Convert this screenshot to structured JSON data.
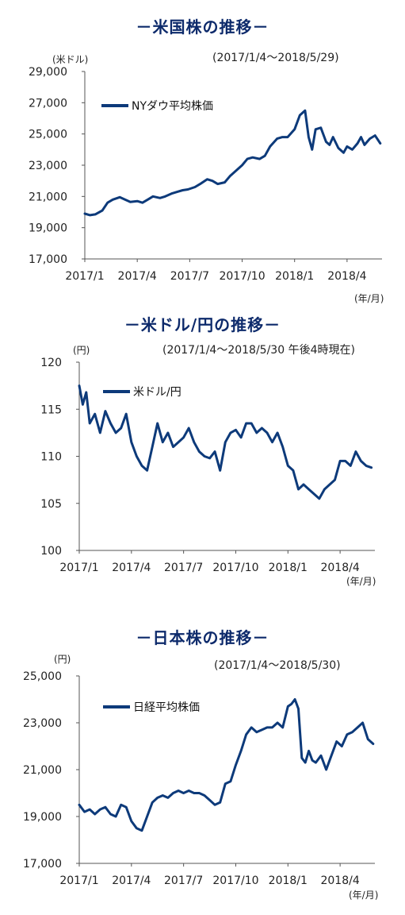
{
  "colors": {
    "line": "#0d3a7a",
    "title": "#0d2a6b",
    "axis": "#555555"
  },
  "chart_data": [
    {
      "type": "line",
      "title": "－米国株の推移－",
      "period": "(2017/1/4～2018/5/29)",
      "yunit": "(米ドル)",
      "xunit": "(年/月)",
      "ylim": [
        17000,
        29000
      ],
      "yticks": [
        "29,000",
        "27,000",
        "25,000",
        "23,000",
        "21,000",
        "19,000",
        "17,000"
      ],
      "ytick_values": [
        29000,
        27000,
        25000,
        23000,
        21000,
        19000,
        17000
      ],
      "xticks": [
        "2017/1",
        "2017/4",
        "2017/7",
        "2017/10",
        "2018/1",
        "2018/4"
      ],
      "xtick_positions": [
        0,
        3,
        6,
        9,
        12,
        15
      ],
      "xlim": [
        0,
        17
      ],
      "series": [
        {
          "name": "NYダウ平均株価",
          "x": [
            0,
            0.3,
            0.6,
            1.0,
            1.3,
            1.6,
            2.0,
            2.3,
            2.6,
            3.0,
            3.3,
            3.6,
            3.9,
            4.3,
            4.6,
            5.0,
            5.3,
            5.6,
            5.9,
            6.3,
            6.6,
            7.0,
            7.3,
            7.6,
            8.0,
            8.3,
            8.6,
            9.0,
            9.3,
            9.6,
            10.0,
            10.3,
            10.6,
            11.0,
            11.3,
            11.6,
            12.0,
            12.3,
            12.6,
            12.8,
            13.0,
            13.2,
            13.5,
            13.8,
            14.0,
            14.2,
            14.5,
            14.8,
            15.0,
            15.3,
            15.6,
            15.8,
            16.0,
            16.3,
            16.6,
            16.9
          ],
          "values": [
            19900,
            19800,
            19850,
            20100,
            20600,
            20800,
            20950,
            20800,
            20650,
            20700,
            20600,
            20800,
            21000,
            20900,
            21000,
            21200,
            21300,
            21400,
            21450,
            21600,
            21800,
            22100,
            22000,
            21800,
            21900,
            22300,
            22600,
            23000,
            23400,
            23500,
            23400,
            23600,
            24200,
            24700,
            24800,
            24800,
            25300,
            26200,
            26500,
            24800,
            24000,
            25300,
            25400,
            24500,
            24300,
            24800,
            24100,
            23800,
            24200,
            24000,
            24400,
            24800,
            24300,
            24700,
            24900,
            24400
          ]
        }
      ]
    },
    {
      "type": "line",
      "title": "－米ドル/円の推移－",
      "period": "(2017/1/4～2018/5/30 午後4時現在)",
      "yunit": "(円)",
      "xunit": "(年/月)",
      "ylim": [
        100,
        120
      ],
      "yticks": [
        "120",
        "115",
        "110",
        "105",
        "100"
      ],
      "ytick_values": [
        120,
        115,
        110,
        105,
        100
      ],
      "xticks": [
        "2017/1",
        "2017/4",
        "2017/7",
        "2017/10",
        "2018/1",
        "2018/4"
      ],
      "xtick_positions": [
        0,
        3,
        6,
        9,
        12,
        15
      ],
      "xlim": [
        0,
        17
      ],
      "series": [
        {
          "name": "米ドル/円",
          "x": [
            0,
            0.2,
            0.4,
            0.6,
            0.9,
            1.2,
            1.5,
            1.8,
            2.1,
            2.4,
            2.7,
            3.0,
            3.3,
            3.6,
            3.9,
            4.2,
            4.5,
            4.8,
            5.1,
            5.4,
            5.7,
            6.0,
            6.3,
            6.6,
            6.9,
            7.2,
            7.5,
            7.8,
            8.1,
            8.4,
            8.7,
            9.0,
            9.3,
            9.6,
            9.9,
            10.2,
            10.5,
            10.8,
            11.1,
            11.4,
            11.7,
            12.0,
            12.3,
            12.6,
            12.9,
            13.2,
            13.5,
            13.8,
            14.1,
            14.4,
            14.7,
            15.0,
            15.3,
            15.6,
            15.9,
            16.2,
            16.5,
            16.8
          ],
          "values": [
            117.5,
            115.5,
            116.8,
            113.5,
            114.5,
            112.5,
            114.8,
            113.5,
            112.5,
            113.0,
            114.5,
            111.5,
            110.0,
            109.0,
            108.5,
            111.0,
            113.5,
            111.5,
            112.5,
            111.0,
            111.5,
            112.0,
            113.0,
            111.5,
            110.5,
            110.0,
            109.8,
            110.5,
            108.5,
            111.5,
            112.5,
            112.8,
            112.0,
            113.5,
            113.5,
            112.5,
            113.0,
            112.5,
            111.5,
            112.5,
            111.0,
            109.0,
            108.5,
            106.5,
            107.0,
            106.5,
            106.0,
            105.5,
            106.5,
            107.0,
            107.5,
            109.5,
            109.5,
            109.0,
            110.5,
            109.5,
            109.0,
            108.8
          ]
        }
      ]
    },
    {
      "type": "line",
      "title": "－日本株の推移－",
      "period": "(2017/1/4～2018/5/30)",
      "yunit": "(円)",
      "xunit": "(年/月)",
      "ylim": [
        17000,
        25000
      ],
      "yticks": [
        "25,000",
        "23,000",
        "21,000",
        "19,000",
        "17,000"
      ],
      "ytick_values": [
        25000,
        23000,
        21000,
        19000,
        17000
      ],
      "xticks": [
        "2017/1",
        "2017/4",
        "2017/7",
        "2017/10",
        "2018/1",
        "2018/4"
      ],
      "xtick_positions": [
        0,
        3,
        6,
        9,
        12,
        15
      ],
      "xlim": [
        0,
        17
      ],
      "series": [
        {
          "name": "日経平均株価",
          "x": [
            0,
            0.3,
            0.6,
            0.9,
            1.2,
            1.5,
            1.8,
            2.1,
            2.4,
            2.7,
            3.0,
            3.3,
            3.6,
            3.9,
            4.2,
            4.5,
            4.8,
            5.1,
            5.4,
            5.7,
            6.0,
            6.3,
            6.6,
            6.9,
            7.2,
            7.5,
            7.8,
            8.1,
            8.4,
            8.7,
            9.0,
            9.3,
            9.6,
            9.9,
            10.2,
            10.5,
            10.8,
            11.1,
            11.4,
            11.7,
            12.0,
            12.2,
            12.4,
            12.6,
            12.8,
            13.0,
            13.2,
            13.4,
            13.6,
            13.9,
            14.2,
            14.5,
            14.8,
            15.1,
            15.4,
            15.7,
            16.0,
            16.3,
            16.6,
            16.9
          ],
          "values": [
            19500,
            19200,
            19300,
            19100,
            19300,
            19400,
            19100,
            19000,
            19500,
            19400,
            18800,
            18500,
            18400,
            19000,
            19600,
            19800,
            19900,
            19800,
            20000,
            20100,
            20000,
            20100,
            20000,
            20000,
            19900,
            19700,
            19500,
            19600,
            20400,
            20500,
            21200,
            21800,
            22500,
            22800,
            22600,
            22700,
            22800,
            22800,
            23000,
            22800,
            23700,
            23800,
            24000,
            23600,
            21500,
            21300,
            21800,
            21400,
            21300,
            21600,
            21000,
            21600,
            22200,
            22000,
            22500,
            22600,
            22800,
            23000,
            22300,
            22100
          ]
        }
      ]
    }
  ]
}
